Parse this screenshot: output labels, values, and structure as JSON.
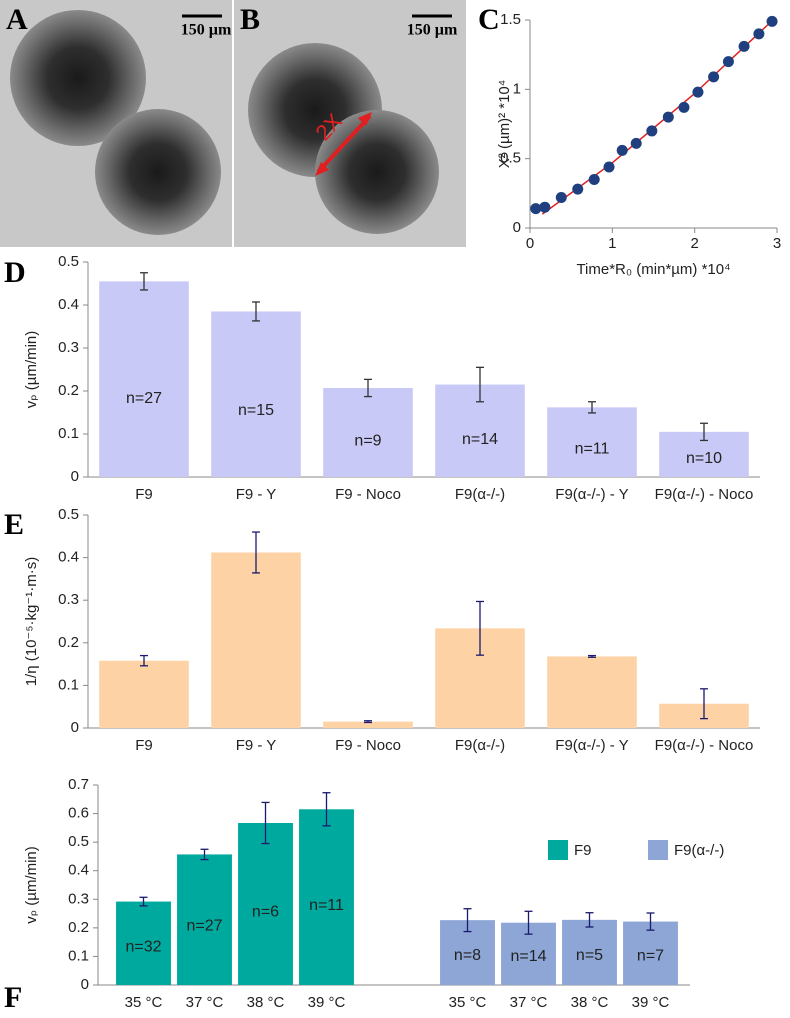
{
  "chart_data": [
    {
      "type": "image",
      "panel": "A",
      "scale_bar": "150 µm"
    },
    {
      "type": "image",
      "panel": "B",
      "scale_bar": "150 µm",
      "annotation": "2X"
    },
    {
      "type": "scatter",
      "panel": "C",
      "x_label": "Time*R₀ (min*µm) *10⁴",
      "y_label": "X² (µm)² *10⁴",
      "xlim": [
        0,
        3
      ],
      "xticks": [
        0,
        1,
        2,
        3
      ],
      "ylim": [
        0,
        1.5
      ],
      "yticks": [
        0,
        0.5,
        1,
        1.5
      ],
      "series": [
        {
          "color": "#1f3f7f",
          "x": [
            0.07,
            0.18,
            0.38,
            0.58,
            0.78,
            0.96,
            1.12,
            1.29,
            1.48,
            1.68,
            1.87,
            2.04,
            2.23,
            2.41,
            2.6,
            2.78,
            2.94
          ],
          "values": [
            0.14,
            0.15,
            0.22,
            0.28,
            0.35,
            0.44,
            0.56,
            0.61,
            0.7,
            0.8,
            0.87,
            0.98,
            1.09,
            1.2,
            1.31,
            1.4,
            1.49
          ]
        },
        {
          "color": "#e02020",
          "x": [
            0.15,
            1,
            2,
            2.95
          ],
          "values": [
            0.1,
            0.47,
            0.97,
            1.5
          ]
        }
      ]
    },
    {
      "type": "bar",
      "panel": "D",
      "y_label": "vₚ (µm/min)",
      "categories": [
        "F9",
        "F9 - Y",
        "F9 - Noco",
        "F9(α-/-)",
        "F9(α-/-) - Y",
        "F9(α-/-) - Noco"
      ],
      "values": [
        0.455,
        0.385,
        0.207,
        0.215,
        0.162,
        0.105
      ],
      "errors": [
        0.02,
        0.022,
        0.02,
        0.04,
        0.013,
        0.02
      ],
      "annotations": [
        "n=27",
        "n=15",
        "n=9",
        "n=14",
        "n=11",
        "n=10"
      ],
      "color": "#c9c9f7",
      "error_color": "#333333",
      "ylim": [
        0,
        0.5
      ],
      "yticks": [
        0,
        0.1,
        0.2,
        0.3,
        0.4,
        0.5
      ]
    },
    {
      "type": "bar",
      "panel": "E",
      "y_label": "1/η (10⁻⁵·kg⁻¹·m·s)",
      "categories": [
        "F9",
        "F9 - Y",
        "F9 - Noco",
        "F9(α-/-)",
        "F9(α-/-) - Y",
        "F9(α-/-) - Noco"
      ],
      "values": [
        0.158,
        0.412,
        0.015,
        0.234,
        0.168,
        0.057
      ],
      "errors": [
        0.012,
        0.048,
        0.002,
        0.063,
        0.002,
        0.035
      ],
      "color": "#fdd3a6",
      "error_color": "#1a1a6e",
      "ylim": [
        0,
        0.5
      ],
      "yticks": [
        0,
        0.1,
        0.2,
        0.3,
        0.4,
        0.5
      ]
    },
    {
      "type": "grouped_bar",
      "panel": "F",
      "y_label": "vₚ (µm/min)",
      "error_color": "#1a1a6e",
      "ylim": [
        0,
        0.7
      ],
      "yticks": [
        0,
        0.1,
        0.2,
        0.3,
        0.4,
        0.5,
        0.6,
        0.7
      ],
      "series": [
        {
          "name": "F9",
          "color": "#00a99d",
          "categories": [
            "35 °C",
            "37 °C",
            "38 °C",
            "39 °C"
          ],
          "values": [
            0.292,
            0.457,
            0.567,
            0.615
          ],
          "errors": [
            0.015,
            0.018,
            0.072,
            0.058
          ],
          "annotations": [
            "n=32",
            "n=27",
            "n=6",
            "n=11"
          ]
        },
        {
          "name": "F9(α-/-)",
          "color": "#8ea6d6",
          "categories": [
            "35 °C",
            "37 °C",
            "38 °C",
            "39 °C"
          ],
          "values": [
            0.227,
            0.218,
            0.228,
            0.222
          ],
          "errors": [
            0.04,
            0.04,
            0.025,
            0.03
          ],
          "annotations": [
            "n=8",
            "n=14",
            "n=5",
            "n=7"
          ]
        }
      ]
    }
  ]
}
